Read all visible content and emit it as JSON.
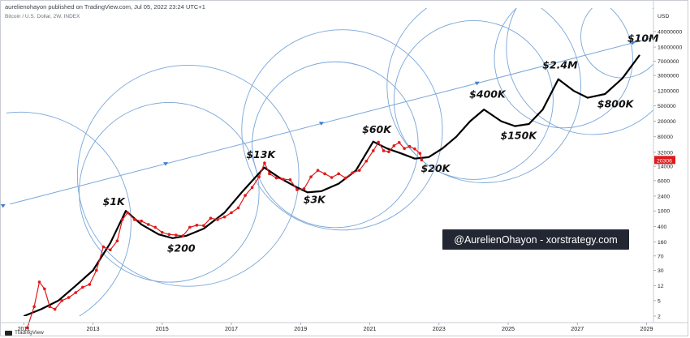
{
  "header": {
    "publisher_line": "aurelienohayon published on TradingView.com, Jul 05, 2022 23:24 UTC+1",
    "symbol_line": "Bitcoin / U.S. Dollar, 2W, INDEX"
  },
  "footer": {
    "brand": "TradingView"
  },
  "colors": {
    "price": "#e0191b",
    "projection": "#000000",
    "circles": "#7aa6d8",
    "trendline": "#7aa6d8",
    "banner_bg": "#232733",
    "banner_fg": "#ffffff",
    "price_tag_bg": "#e0191b"
  },
  "chart_data": {
    "type": "line",
    "title": "",
    "y_unit_label": "USD",
    "y_scale": "log",
    "ylim": [
      2,
      160000000
    ],
    "xlim": [
      2010.5,
      2029.2
    ],
    "x_ticks": [
      "2011",
      "2013",
      "2015",
      "2017",
      "2019",
      "2021",
      "2023",
      "2025",
      "2027",
      "2029"
    ],
    "y_ticks": [
      "100000000",
      "40000000",
      "16000000",
      "7000000",
      "3000000",
      "1200000",
      "500000",
      "200000",
      "80000",
      "32000",
      "14000",
      "6000",
      "2400",
      "1000",
      "400",
      "160",
      "70",
      "30",
      "12",
      "5",
      "2"
    ],
    "last_price_label": "20306",
    "grid": false,
    "series": [
      {
        "kind": "price",
        "x": [
          2011.1,
          2011.3,
          2011.45,
          2011.6,
          2011.75,
          2011.9,
          2012.1,
          2012.3,
          2012.5,
          2012.7,
          2012.9,
          2013.1,
          2013.3,
          2013.5,
          2013.7,
          2013.85,
          2014.0,
          2014.2,
          2014.4,
          2014.6,
          2014.8,
          2015.0,
          2015.2,
          2015.4,
          2015.6,
          2015.8,
          2016.0,
          2016.2,
          2016.4,
          2016.6,
          2016.8,
          2017.0,
          2017.2,
          2017.4,
          2017.6,
          2017.8,
          2017.96,
          2018.1,
          2018.3,
          2018.5,
          2018.7,
          2018.9,
          2019.1,
          2019.3,
          2019.5,
          2019.7,
          2019.9,
          2020.1,
          2020.3,
          2020.5,
          2020.7,
          2020.9,
          2021.1,
          2021.25,
          2021.4,
          2021.55,
          2021.7,
          2021.85,
          2022.0,
          2022.15,
          2022.3,
          2022.45,
          2022.5
        ],
        "y": [
          1,
          3.5,
          15,
          10,
          3.5,
          3,
          5,
          6,
          8,
          11,
          13,
          30,
          120,
          100,
          170,
          600,
          900,
          600,
          550,
          450,
          380,
          280,
          250,
          240,
          230,
          380,
          430,
          420,
          650,
          600,
          700,
          900,
          1200,
          2500,
          4000,
          7500,
          17000,
          9000,
          7000,
          6500,
          6300,
          3500,
          3700,
          7500,
          11000,
          9000,
          7200,
          9000,
          7000,
          9500,
          11000,
          19000,
          35000,
          58000,
          35000,
          33000,
          47000,
          57000,
          40000,
          45000,
          39000,
          30000,
          20306
        ]
      },
      {
        "kind": "projection",
        "x": [
          2011.0,
          2011.5,
          2012.0,
          2012.5,
          2013.0,
          2013.5,
          2013.95,
          2014.4,
          2014.9,
          2015.3,
          2015.7,
          2016.2,
          2016.8,
          2017.3,
          2017.95,
          2018.4,
          2018.9,
          2019.2,
          2019.6,
          2020.1,
          2020.6,
          2021.1,
          2021.5,
          2021.9,
          2022.3,
          2022.7,
          2023.1,
          2023.5,
          2023.9,
          2024.3,
          2024.8,
          2025.2,
          2025.6,
          2026.0,
          2026.45,
          2026.9,
          2027.3,
          2027.8,
          2028.3,
          2028.8
        ],
        "y": [
          2,
          3,
          5,
          12,
          30,
          150,
          1000,
          450,
          250,
          200,
          230,
          350,
          900,
          3000,
          13000,
          7000,
          4000,
          3000,
          3200,
          5000,
          11000,
          60000,
          40000,
          30000,
          22000,
          24000,
          40000,
          80000,
          200000,
          400000,
          200000,
          150000,
          170000,
          400000,
          2400000,
          1200000,
          800000,
          1000000,
          2500000,
          10000000
        ]
      }
    ],
    "annotations": [
      {
        "text": "$1K",
        "x": 2013.6,
        "y": 1400
      },
      {
        "text": "$200",
        "x": 2015.55,
        "y": 90
      },
      {
        "text": "$13K",
        "x": 2017.85,
        "y": 23000
      },
      {
        "text": "$3K",
        "x": 2019.4,
        "y": 1600
      },
      {
        "text": "$60K",
        "x": 2021.2,
        "y": 100000
      },
      {
        "text": "$20K",
        "x": 2022.9,
        "y": 10000
      },
      {
        "text": "$400K",
        "x": 2024.4,
        "y": 800000
      },
      {
        "text": "$150K",
        "x": 2025.3,
        "y": 70000
      },
      {
        "text": "$2.4M",
        "x": 2026.5,
        "y": 4500000
      },
      {
        "text": "$800K",
        "x": 2028.1,
        "y": 450000
      },
      {
        "text": "$10M",
        "x": 2028.9,
        "y": 22000000
      }
    ],
    "banner": "@AurelienOhayon - xorstrategy.com",
    "trendline": {
      "x": [
        2010.6,
        2029.2
      ],
      "y": [
        1500,
        28000000
      ]
    },
    "trend_markers_x": [
      2010.4,
      2015.1,
      2019.6,
      2024.1,
      2028.6
    ],
    "circles": [
      {
        "cx": 2010.9,
        "cy": 500,
        "r_years": 3.2
      },
      {
        "cx": 2015.75,
        "cy": 8000,
        "r_years": 3.2
      },
      {
        "cx": 2015.2,
        "cy": 3000,
        "r_years": 2.6
      },
      {
        "cx": 2020.2,
        "cy": 120000,
        "r_years": 2.9
      },
      {
        "cx": 2020.0,
        "cy": 50000,
        "r_years": 2.4
      },
      {
        "cx": 2024.3,
        "cy": 1600000,
        "r_years": 2.8
      },
      {
        "cx": 2024.0,
        "cy": 700000,
        "r_years": 2.3
      },
      {
        "cx": 2027.45,
        "cy": 15000000,
        "r_years": 2.5
      },
      {
        "cx": 2026.6,
        "cy": 8000000,
        "r_years": 2.0
      },
      {
        "cx": 2028.3,
        "cy": 30000000,
        "r_years": 1.2
      }
    ]
  }
}
